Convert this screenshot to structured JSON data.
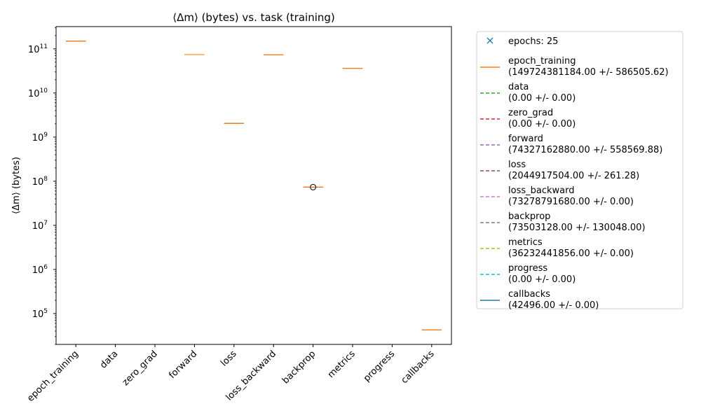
{
  "chart_data": {
    "type": "box",
    "title": "⟨Δm⟩ (bytes) vs. task (training)",
    "xlabel": "",
    "ylabel": "⟨Δm⟩ (bytes)",
    "yscale": "log",
    "ylim": [
      20000,
      320000000000
    ],
    "grid": false,
    "legend_position": "right, outside plot",
    "categories": [
      "epoch_training",
      "data",
      "zero_grad",
      "forward",
      "loss",
      "loss_backward",
      "backprop",
      "metrics",
      "progress",
      "callbacks"
    ],
    "y_ticks": [
      {
        "value": 100000,
        "base": "10",
        "exp": "5"
      },
      {
        "value": 1000000,
        "base": "10",
        "exp": "6"
      },
      {
        "value": 10000000,
        "base": "10",
        "exp": "7"
      },
      {
        "value": 100000000,
        "base": "10",
        "exp": "8"
      },
      {
        "value": 1000000000,
        "base": "10",
        "exp": "9"
      },
      {
        "value": 10000000000,
        "base": "10",
        "exp": "10"
      },
      {
        "value": 100000000000,
        "base": "10",
        "exp": "11"
      }
    ],
    "boxes": [
      {
        "category": "epoch_training",
        "median": 149724381184.0
      },
      {
        "category": "data",
        "median": 0.0
      },
      {
        "category": "zero_grad",
        "median": 0.0
      },
      {
        "category": "forward",
        "median": 74327162880.0
      },
      {
        "category": "loss",
        "median": 2044917504.0
      },
      {
        "category": "loss_backward",
        "median": 73278791680.0
      },
      {
        "category": "backprop",
        "median": 73503128.0
      },
      {
        "category": "metrics",
        "median": 36232441856.0
      },
      {
        "category": "progress",
        "median": 0.0
      },
      {
        "category": "callbacks",
        "median": 42496.0
      }
    ],
    "outliers": [
      {
        "category": "backprop",
        "value": 73503128.0
      }
    ],
    "legend": [
      {
        "label": "epochs: 25",
        "style": "marker-x",
        "color": "#1f77b4"
      },
      {
        "label": "epoch_training",
        "stats": "(149724381184.00 +/- 586505.62)",
        "style": "solid",
        "color": "#ff7f0e"
      },
      {
        "label": "data",
        "stats": "(0.00 +/- 0.00)",
        "style": "dashed",
        "color": "#2ca02c"
      },
      {
        "label": "zero_grad",
        "stats": "(0.00 +/- 0.00)",
        "style": "dashed",
        "color": "#d62728"
      },
      {
        "label": "forward",
        "stats": "(74327162880.00 +/- 558569.88)",
        "style": "dashed",
        "color": "#9467bd"
      },
      {
        "label": "loss",
        "stats": "(2044917504.00 +/- 261.28)",
        "style": "dashed",
        "color": "#8c564b"
      },
      {
        "label": "loss_backward",
        "stats": "(73278791680.00 +/- 0.00)",
        "style": "dashed",
        "color": "#e377c2"
      },
      {
        "label": "backprop",
        "stats": "(73503128.00 +/- 130048.00)",
        "style": "dashed",
        "color": "#7f7f7f"
      },
      {
        "label": "metrics",
        "stats": "(36232441856.00 +/- 0.00)",
        "style": "dashed",
        "color": "#bcbd22"
      },
      {
        "label": "progress",
        "stats": "(0.00 +/- 0.00)",
        "style": "dashed",
        "color": "#17becf"
      },
      {
        "label": "callbacks",
        "stats": "(42496.00 +/- 0.00)",
        "style": "solid",
        "color": "#1f77b4"
      }
    ],
    "median_color": "#ff7f0e"
  }
}
